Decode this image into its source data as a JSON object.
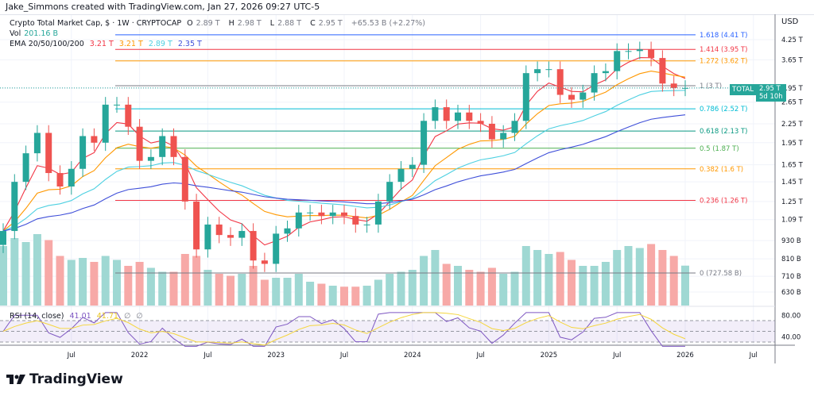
{
  "credit": "Jake_Simmons created with TradingView.com, Jan 27, 2026 09:27 UTC-5",
  "legend": {
    "title": "Crypto Total Market Cap, $ · 1W · CRYPTOCAP",
    "o_label": "O",
    "o": "2.89 T",
    "h_label": "H",
    "h": "2.98 T",
    "l_label": "L",
    "l": "2.88 T",
    "c_label": "C",
    "c": "2.95 T",
    "change": "+65.53 B (+2.27%)",
    "vol_label": "Vol",
    "vol": "201.16 B",
    "ema_label": "EMA 20/50/100/200",
    "ema20": "3.21 T",
    "ema50": "3.21 T",
    "ema100": "2.89 T",
    "ema200": "2.35 T",
    "rsi_label": "RSI (14, close)",
    "rsi": "41.01",
    "rsi_ma": "41.71",
    "na1": "∅",
    "na2": "∅"
  },
  "price_tag": {
    "symbol": "TOTAL",
    "price": "2.95 T",
    "countdown": "5d 10h"
  },
  "colors": {
    "up": "#26a69a",
    "down": "#ef5350",
    "ema20": "#f23645",
    "ema50": "#ff9800",
    "ema100": "#4dd0e1",
    "ema200": "#3f4fd9",
    "rsi": "#7e57c2",
    "rsi_ma": "#f5d63d"
  },
  "chart_data": {
    "type": "candlestick",
    "scale": "log",
    "currency_label": "USD",
    "y_ticks": [
      "4.25 T",
      "3.65 T",
      "2.95 T",
      "2.65 T",
      "2.25 T",
      "1.95 T",
      "1.65 T",
      "1.45 T",
      "1.25 T",
      "1.09 T",
      "930 B",
      "810 B",
      "710 B",
      "630 B"
    ],
    "y_tick_values": [
      4.25,
      3.65,
      2.95,
      2.65,
      2.25,
      1.95,
      1.65,
      1.45,
      1.25,
      1.09,
      0.93,
      0.81,
      0.71,
      0.63
    ],
    "x_ticks": [
      {
        "label": "Jul",
        "month": 6
      },
      {
        "label": "2022",
        "month": 12
      },
      {
        "label": "Jul",
        "month": 18
      },
      {
        "label": "2023",
        "month": 24
      },
      {
        "label": "Jul",
        "month": 30
      },
      {
        "label": "2024",
        "month": 36
      },
      {
        "label": "Jul",
        "month": 42
      },
      {
        "label": "2025",
        "month": 48
      },
      {
        "label": "Jul",
        "month": 54
      },
      {
        "label": "2026",
        "month": 60
      },
      {
        "label": "Jul",
        "month": 66
      }
    ],
    "close_T_monthly_from_2021_01": [
      1.0,
      1.45,
      1.8,
      2.1,
      1.55,
      1.4,
      1.6,
      2.05,
      1.95,
      2.6,
      2.6,
      2.2,
      1.7,
      1.75,
      2.05,
      1.75,
      1.25,
      0.87,
      1.05,
      0.97,
      0.95,
      1.0,
      0.8,
      0.78,
      0.98,
      1.02,
      1.15,
      1.15,
      1.12,
      1.15,
      1.12,
      1.05,
      1.05,
      1.25,
      1.45,
      1.6,
      1.65,
      2.3,
      2.55,
      2.3,
      2.45,
      2.3,
      2.25,
      2.0,
      2.1,
      2.3,
      3.3,
      3.4,
      3.4,
      2.8,
      2.7,
      2.85,
      3.3,
      3.35,
      3.9,
      3.9,
      3.95,
      3.7,
      3.05,
      2.95,
      2.95
    ],
    "volume_B_monthly_from_2021_01": [
      300,
      340,
      320,
      360,
      330,
      250,
      230,
      240,
      220,
      250,
      230,
      200,
      220,
      190,
      170,
      170,
      260,
      250,
      180,
      160,
      150,
      160,
      200,
      130,
      140,
      140,
      160,
      120,
      110,
      100,
      95,
      95,
      100,
      130,
      160,
      170,
      180,
      250,
      280,
      210,
      200,
      180,
      170,
      190,
      160,
      170,
      300,
      280,
      260,
      270,
      230,
      200,
      200,
      220,
      280,
      300,
      290,
      310,
      280,
      250,
      201.16
    ],
    "fib_levels": [
      {
        "label": "1.618 (4.41 T)",
        "value": 4.41,
        "color": "#2962ff"
      },
      {
        "label": "1.414 (3.95 T)",
        "value": 3.95,
        "color": "#f23645"
      },
      {
        "label": "1.272 (3.62 T)",
        "value": 3.62,
        "color": "#ff9800"
      },
      {
        "label": "1 (3 T)",
        "value": 3.0,
        "color": "#787b86"
      },
      {
        "label": "0.786 (2.52 T)",
        "value": 2.52,
        "color": "#00bcd4"
      },
      {
        "label": "0.618 (2.13 T)",
        "value": 2.13,
        "color": "#089981"
      },
      {
        "label": "0.5 (1.87 T)",
        "value": 1.87,
        "color": "#4caf50"
      },
      {
        "label": "0.382 (1.6 T)",
        "value": 1.6,
        "color": "#ff9800"
      },
      {
        "label": "0.236 (1.26 T)",
        "value": 1.26,
        "color": "#f23645"
      },
      {
        "label": "0 (727.58 B)",
        "value": 0.72758,
        "color": "#787b86"
      }
    ],
    "rsi_ticks": [
      "80.00",
      "40.00"
    ],
    "rsi_tick_values": [
      80,
      40
    ],
    "rsi_bands": [
      70,
      50,
      30
    ]
  }
}
